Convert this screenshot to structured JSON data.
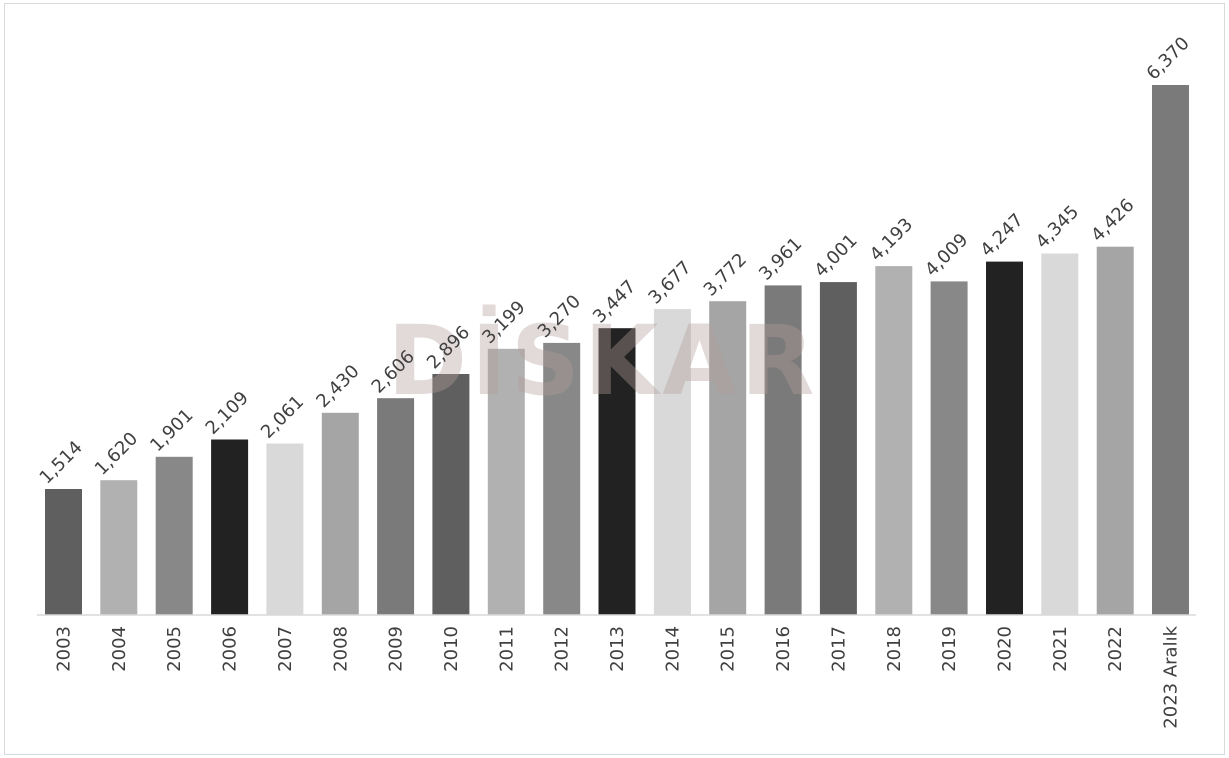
{
  "chart_data": {
    "type": "bar",
    "title": "",
    "xlabel": "",
    "ylabel": "",
    "categories": [
      "2003",
      "2004",
      "2005",
      "2006",
      "2007",
      "2008",
      "2009",
      "2010",
      "2011",
      "2012",
      "2013",
      "2014",
      "2015",
      "2016",
      "2017",
      "2018",
      "2019",
      "2020",
      "2021",
      "2022",
      "2023 Aralık"
    ],
    "values": [
      1514,
      1620,
      1901,
      2109,
      2061,
      2430,
      2606,
      2896,
      3199,
      3270,
      3447,
      3677,
      3772,
      3961,
      4001,
      4193,
      4009,
      4247,
      4345,
      4426,
      6370
    ],
    "value_labels": [
      "1,514",
      "1,620",
      "1,901",
      "2,109",
      "2,061",
      "2,430",
      "2,606",
      "2,896",
      "3,199",
      "3,270",
      "3,447",
      "3,677",
      "3,772",
      "3,961",
      "4,001",
      "4,193",
      "4,009",
      "4,247",
      "4,345",
      "4,426",
      "6,370"
    ],
    "bar_colors": [
      "#5f5f5f",
      "#b1b1b1",
      "#888888",
      "#222222",
      "#d9d9d9",
      "#a5a5a5",
      "#7a7a7a",
      "#5f5f5f",
      "#b1b1b1",
      "#888888",
      "#222222",
      "#d9d9d9",
      "#a5a5a5",
      "#7a7a7a",
      "#5f5f5f",
      "#b1b1b1",
      "#888888",
      "#222222",
      "#d9d9d9",
      "#a5a5a5",
      "#7a7a7a"
    ],
    "ylim": [
      0,
      6370
    ],
    "grid": false,
    "legend": "none",
    "data_labels_rotated": true,
    "tick_labels_rotated": true
  },
  "watermark": {
    "text": "DİSKAR",
    "color": "#b39b9b"
  },
  "axis_color": "#d9d9d9"
}
